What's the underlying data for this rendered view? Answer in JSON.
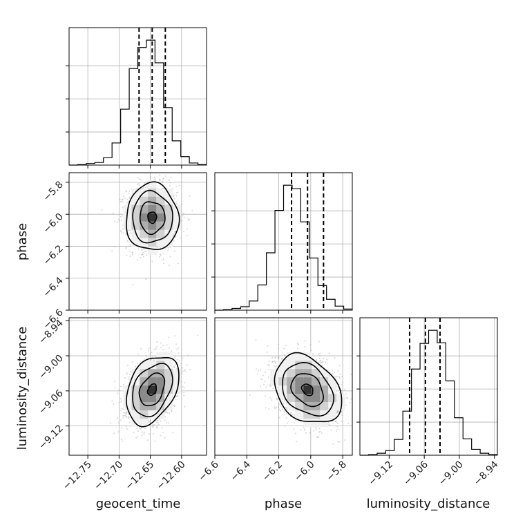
{
  "chart_data": {
    "type": "corner",
    "parameters": [
      {
        "name": "geocent_time",
        "range": [
          -12.78,
          -12.56
        ],
        "ticks": [
          -12.75,
          -12.7,
          -12.65,
          -12.6
        ],
        "tick_labels": [
          "−12.75",
          "−12.70",
          "−12.65",
          "−12.60"
        ],
        "mean": -12.647,
        "sd": 0.02,
        "quantiles": [
          -12.668,
          -12.647,
          -12.626
        ]
      },
      {
        "name": "phase",
        "range": [
          -6.6,
          -5.74
        ],
        "ticks": [
          -6.6,
          -6.4,
          -6.2,
          -6.0,
          -5.8
        ],
        "tick_labels": [
          "−6.6",
          "−6.4",
          "−6.2",
          "−6.0",
          "−5.8"
        ],
        "mean": -6.02,
        "sd": 0.1,
        "quantiles": [
          -6.12,
          -6.02,
          -5.92
        ]
      },
      {
        "name": "luminosity_distance",
        "range": [
          -9.17,
          -8.935
        ],
        "ticks": [
          -9.12,
          -9.06,
          -9.0,
          -8.94
        ],
        "tick_labels": [
          "−9.12",
          "−9.06",
          "−9.00",
          "−8.94"
        ],
        "mean": -9.058,
        "sd": 0.028,
        "quantiles": [
          -9.085,
          -9.058,
          -9.033
        ]
      }
    ],
    "histograms": [
      {
        "param": "geocent_time",
        "counts": [
          0,
          1,
          3,
          5,
          14,
          42,
          106,
          183,
          223,
          237,
          194,
          109,
          46,
          16,
          4,
          1
        ]
      },
      {
        "param": "phase",
        "counts": [
          0,
          1,
          3,
          6,
          16,
          44,
          100,
          174,
          218,
          212,
          154,
          91,
          43,
          19,
          7,
          2
        ]
      },
      {
        "param": "luminosity_distance",
        "counts": [
          0,
          1,
          3,
          7,
          24,
          67,
          131,
          170,
          190,
          171,
          113,
          57,
          25,
          9,
          3,
          1
        ]
      }
    ],
    "correlations": [
      {
        "x": "geocent_time",
        "y": "phase",
        "rho": 0.0
      },
      {
        "x": "geocent_time",
        "y": "luminosity_distance",
        "rho": 0.35
      },
      {
        "x": "phase",
        "y": "luminosity_distance",
        "rho": -0.3
      }
    ],
    "grid": true
  }
}
